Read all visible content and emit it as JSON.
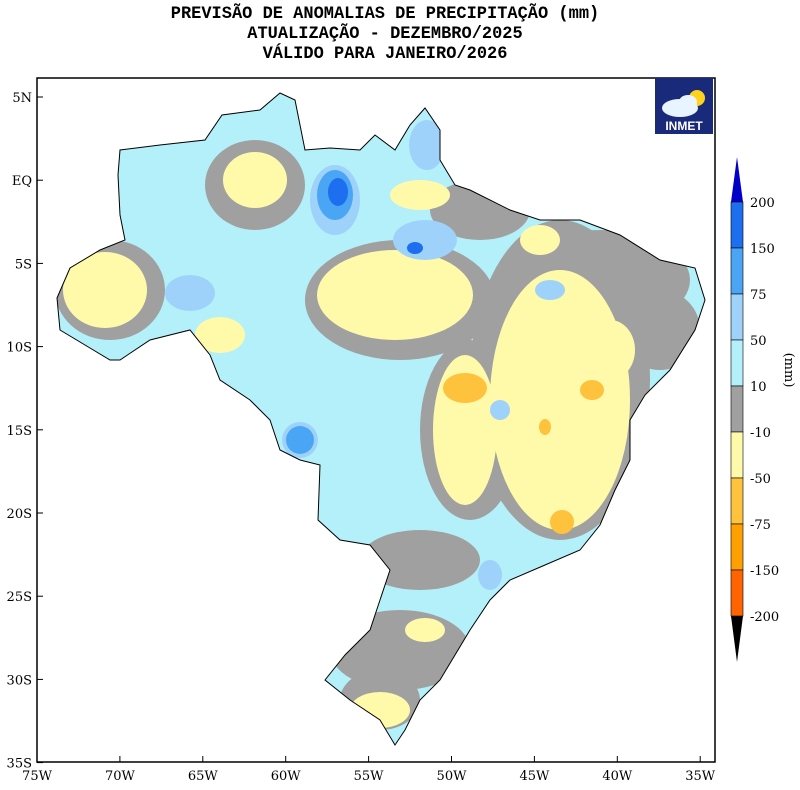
{
  "title": {
    "line1": "PREVISÃO DE ANOMALIAS DE PRECIPITAÇÃO (mm)",
    "line2": "ATUALIZAÇÃO - DEZEMBRO/2025",
    "line3": "VÁLIDO PARA JANEIRO/2026"
  },
  "logo": {
    "text": "INMET",
    "icon": "cloud-sun-icon"
  },
  "axes": {
    "lat_ticks": [
      "5N",
      "EQ",
      "5S",
      "10S",
      "15S",
      "20S",
      "25S",
      "30S",
      "35S"
    ],
    "lon_ticks": [
      "75W",
      "70W",
      "65W",
      "60W",
      "55W",
      "50W",
      "45W",
      "40W",
      "35W"
    ]
  },
  "colorbar": {
    "unit": "(mm)",
    "labels": [
      "200",
      "150",
      "75",
      "50",
      "10",
      "-10",
      "-50",
      "-75",
      "-150",
      "-200"
    ],
    "colors": {
      "above_200": "#0000c8",
      "150_200": "#1e6ef0",
      "75_150": "#4ba5f5",
      "50_75": "#9ed2fa",
      "10_50": "#b4f0fa",
      "-10_10": "#a0a0a0",
      "-50_-10": "#fffaaa",
      "-75_-50": "#ffc23c",
      "-150_-75": "#ffa000",
      "-200_-150": "#ff6400",
      "below_-200": "#ff3212"
    }
  }
}
